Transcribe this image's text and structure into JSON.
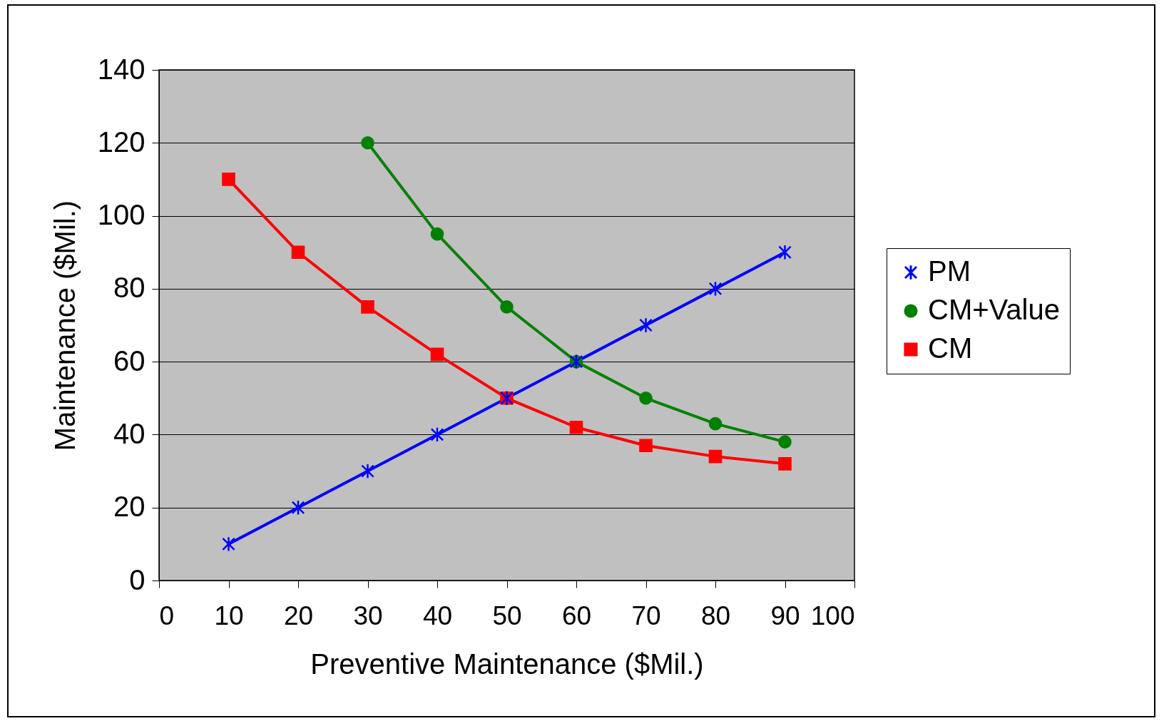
{
  "chart_data": {
    "type": "line",
    "xlabel": "Preventive Maintenance ($Mil.)",
    "ylabel": "Maintenance ($Mil.)",
    "xlim": [
      0,
      100
    ],
    "xticks": [
      0,
      10,
      20,
      30,
      40,
      50,
      60,
      70,
      80,
      90,
      100
    ],
    "ylim": [
      0,
      140
    ],
    "yticks": [
      0,
      20,
      40,
      60,
      80,
      100,
      120,
      140
    ],
    "grid": "y",
    "legend": "right",
    "series": [
      {
        "name": "PM",
        "color": "#0000ff",
        "marker": "cross",
        "x": [
          10,
          20,
          30,
          40,
          50,
          60,
          70,
          80,
          90
        ],
        "values": [
          10,
          20,
          30,
          40,
          50,
          60,
          70,
          80,
          90
        ]
      },
      {
        "name": "CM+Value",
        "color": "#008000",
        "marker": "circle",
        "x": [
          30,
          40,
          50,
          60,
          70,
          80,
          90
        ],
        "values": [
          120,
          95,
          75,
          60,
          50,
          43,
          38
        ]
      },
      {
        "name": "CM",
        "color": "#ff0000",
        "marker": "square",
        "x": [
          10,
          20,
          30,
          40,
          50,
          60,
          70,
          80,
          90
        ],
        "values": [
          110,
          90,
          75,
          62,
          50,
          42,
          37,
          34,
          32
        ]
      }
    ]
  }
}
